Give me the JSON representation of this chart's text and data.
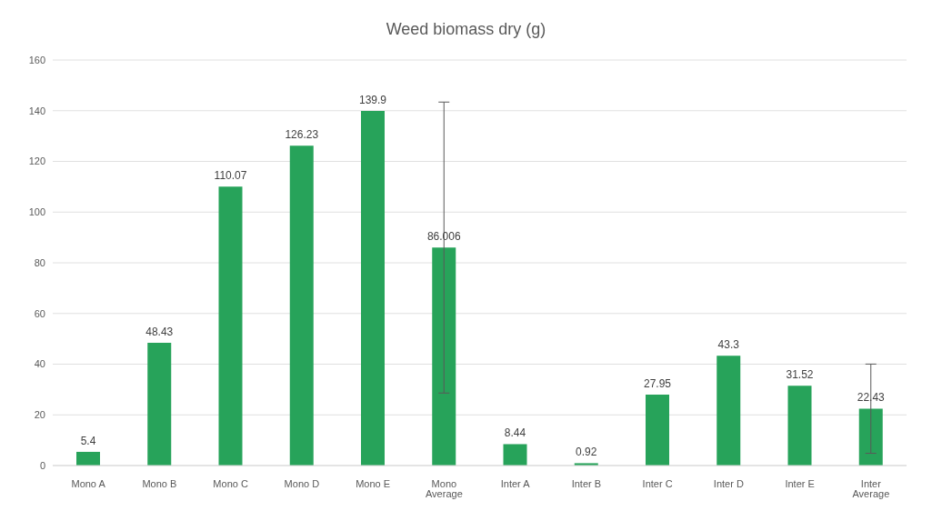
{
  "chart_data": {
    "type": "bar",
    "title": "Weed biomass dry (g)",
    "categories": [
      "Mono A",
      "Mono B",
      "Mono C",
      "Mono D",
      "Mono E",
      "Mono Average",
      "Inter A",
      "Inter B",
      "Inter C",
      "Inter D",
      "Inter E",
      "Inter Average"
    ],
    "values": [
      5.4,
      48.43,
      110.07,
      126.23,
      139.9,
      86.006,
      8.44,
      0.92,
      27.95,
      43.3,
      31.52,
      22.43
    ],
    "errors": [
      null,
      null,
      null,
      null,
      null,
      57.4,
      null,
      null,
      null,
      null,
      null,
      17.6
    ],
    "color": "#27a35a",
    "ylim": [
      0,
      160
    ],
    "yticks": [
      0,
      20,
      40,
      60,
      80,
      100,
      120,
      140,
      160
    ],
    "grid": "y",
    "data_labels": true
  }
}
